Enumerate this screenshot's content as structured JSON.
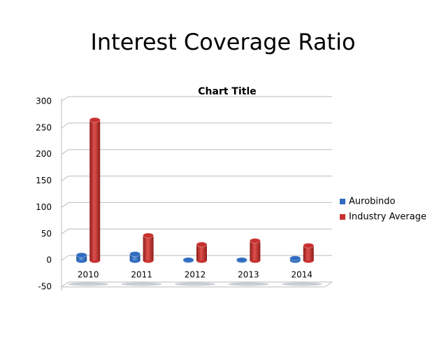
{
  "chart_data": {
    "type": "bar3d",
    "slide_title": "Interest Coverage Ratio",
    "title": "Chart Title",
    "categories": [
      "2010",
      "2011",
      "2012",
      "2013",
      "2014"
    ],
    "series": [
      {
        "name": "Aurobindo",
        "color": "#2f6cc0",
        "values": [
          10,
          12,
          1,
          1,
          4
        ]
      },
      {
        "name": "Industry Average",
        "color": "#c8312f",
        "values": [
          265,
          47,
          30,
          37,
          28
        ]
      }
    ],
    "ylim": [
      -50,
      300
    ],
    "yticks": [
      -50,
      0,
      50,
      100,
      150,
      200,
      250,
      300
    ],
    "grid": true,
    "legend": "right"
  }
}
